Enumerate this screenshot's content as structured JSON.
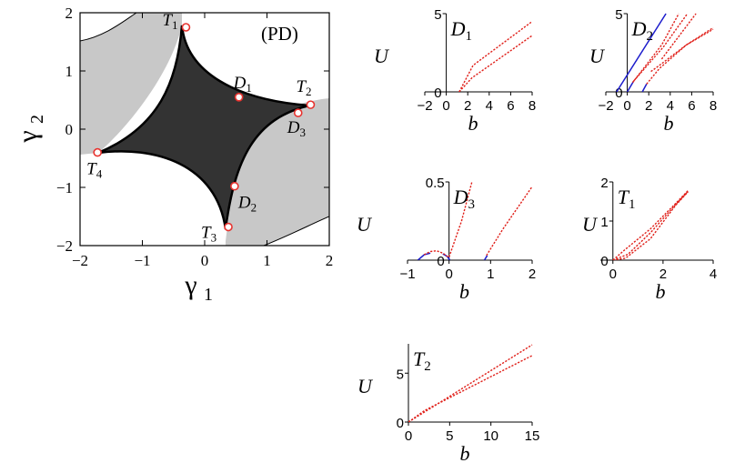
{
  "chart_data": [
    {
      "id": "PD",
      "type": "diagram",
      "panel_label": "(PD)",
      "xlabel": "γ₁",
      "ylabel": "γ₂",
      "xlim": [
        -2,
        2
      ],
      "ylim": [
        -2,
        2
      ],
      "xticks": [
        "−2",
        "−1",
        "0",
        "1",
        "2"
      ],
      "yticks": [
        "−2",
        "−1",
        "0",
        "1",
        "2"
      ],
      "colors": {
        "dark_region": "#333333",
        "grey_region": "#c8c8c8",
        "markers": "#e8322e"
      },
      "points": [
        {
          "label": "T1",
          "sub": "1",
          "x": -0.3,
          "y": 1.75
        },
        {
          "label": "T2",
          "sub": "2",
          "x": 1.7,
          "y": 0.42
        },
        {
          "label": "T3",
          "sub": "3",
          "x": 0.38,
          "y": -1.68
        },
        {
          "label": "T4",
          "sub": "4",
          "x": -1.72,
          "y": -0.4
        },
        {
          "label": "D1",
          "sub": "1",
          "x": 0.55,
          "y": 0.55
        },
        {
          "label": "D2",
          "sub": "2",
          "x": 0.48,
          "y": -0.98
        },
        {
          "label": "D3",
          "sub": "3",
          "x": 1.5,
          "y": 0.28
        }
      ]
    },
    {
      "id": "D1",
      "type": "line",
      "title_letter": "D",
      "title_sub": "1",
      "xlabel": "b",
      "ylabel": "U",
      "xlim": [
        -2,
        8
      ],
      "ylim": [
        0,
        5
      ],
      "xticks": [
        "−2",
        "0",
        "2",
        "4",
        "6",
        "8"
      ],
      "yticks": [
        "0",
        "5"
      ],
      "series": [
        {
          "style": "dotted",
          "color": "#e0201a",
          "x": [
            1.2,
            2.5,
            8
          ],
          "y": [
            0,
            1.7,
            4.5
          ]
        },
        {
          "style": "dotted",
          "color": "#e0201a",
          "x": [
            1.2,
            2.4,
            8
          ],
          "y": [
            0,
            0.9,
            3.6
          ]
        }
      ]
    },
    {
      "id": "D2",
      "type": "line",
      "title_letter": "D",
      "title_sub": "2",
      "xlabel": "b",
      "ylabel": "U",
      "xlim": [
        -2,
        8
      ],
      "ylim": [
        0,
        5
      ],
      "xticks": [
        "−2",
        "0",
        "2",
        "4",
        "6",
        "8"
      ],
      "yticks": [
        "0",
        "5"
      ],
      "series": [
        {
          "style": "solid",
          "color": "#1c1ccc",
          "x": [
            -1,
            3.6
          ],
          "y": [
            0,
            5
          ]
        },
        {
          "style": "solid",
          "color": "#1c1ccc",
          "x": [
            0,
            0.6
          ],
          "y": [
            0,
            0.7
          ]
        },
        {
          "style": "solid",
          "color": "#1c1ccc",
          "x": [
            1.4,
            1.8
          ],
          "y": [
            0,
            0.5
          ]
        },
        {
          "style": "dotted",
          "color": "#e0201a",
          "x": [
            0.5,
            3.2,
            4.8
          ],
          "y": [
            0.6,
            3.0,
            5
          ]
        },
        {
          "style": "dotted",
          "color": "#e0201a",
          "x": [
            0.6,
            3.4,
            5.6
          ],
          "y": [
            0.7,
            2.9,
            5
          ]
        },
        {
          "style": "dotted",
          "color": "#e0201a",
          "x": [
            1.8,
            3.0,
            5.5,
            8
          ],
          "y": [
            0.5,
            1.5,
            3.0,
            4.0
          ]
        },
        {
          "style": "dotted",
          "color": "#e0201a",
          "x": [
            2.2,
            3.0,
            5.5,
            8
          ],
          "y": [
            1.3,
            1.7,
            3.0,
            4.1
          ]
        },
        {
          "style": "dotted",
          "color": "#e0201a",
          "x": [
            3.2,
            5.3,
            6.4
          ],
          "y": [
            2.1,
            4.0,
            5
          ]
        }
      ]
    },
    {
      "id": "D3",
      "type": "line",
      "title_letter": "D",
      "title_sub": "3",
      "xlabel": "b",
      "ylabel": "U",
      "xlim": [
        -1,
        2
      ],
      "ylim": [
        0,
        0.5
      ],
      "xticks": [
        "−1",
        "0",
        "1",
        "2"
      ],
      "yticks": [
        "0",
        "0.5"
      ],
      "series": [
        {
          "style": "solid",
          "color": "#1c1ccc",
          "x": [
            -0.75,
            -0.6,
            -0.45
          ],
          "y": [
            0,
            0.035,
            0.045
          ]
        },
        {
          "style": "solid",
          "color": "#1c1ccc",
          "x": [
            -0.15,
            -0.05,
            0.02
          ],
          "y": [
            0.04,
            0.025,
            0
          ]
        },
        {
          "style": "solid",
          "color": "#1c1ccc",
          "x": [
            0.85,
            0.92
          ],
          "y": [
            0,
            0.03
          ]
        },
        {
          "style": "dotted",
          "color": "#e0201a",
          "x": [
            -0.6,
            -0.45,
            -0.3,
            -0.15,
            -0.02
          ],
          "y": [
            0.035,
            0.055,
            0.06,
            0.045,
            0.02
          ]
        },
        {
          "style": "dotted",
          "color": "#e0201a",
          "x": [
            0.0,
            0.3,
            0.55
          ],
          "y": [
            0.02,
            0.25,
            0.5
          ]
        },
        {
          "style": "dotted",
          "color": "#e0201a",
          "x": [
            0.9,
            1.3,
            2.0
          ],
          "y": [
            0.03,
            0.2,
            0.47
          ]
        }
      ]
    },
    {
      "id": "T1",
      "type": "line",
      "title_letter": "T",
      "title_sub": "1",
      "xlabel": "b",
      "ylabel": "U",
      "xlim": [
        -0.5,
        4
      ],
      "ylim": [
        0,
        2
      ],
      "xticks": [
        "0",
        "2",
        "4"
      ],
      "yticks": [
        "0",
        "1",
        "2"
      ],
      "series": [
        {
          "style": "dotted",
          "color": "#e0201a",
          "x": [
            0,
            0.5,
            1.5,
            2.5,
            3.0
          ],
          "y": [
            0,
            0.05,
            0.55,
            1.4,
            1.75
          ]
        },
        {
          "style": "dotted",
          "color": "#e0201a",
          "x": [
            0,
            0.5,
            1.5,
            2.5,
            3.0
          ],
          "y": [
            0,
            0.28,
            0.8,
            1.45,
            1.78
          ]
        },
        {
          "style": "dotted",
          "color": "#e0201a",
          "x": [
            0,
            0.6,
            1.5,
            2.5,
            3.0
          ],
          "y": [
            0,
            0.15,
            0.7,
            1.42,
            1.76
          ]
        }
      ]
    },
    {
      "id": "T2",
      "type": "line",
      "title_letter": "T",
      "title_sub": "2",
      "xlabel": "b",
      "ylabel": "U",
      "xlim": [
        0,
        15
      ],
      "ylim": [
        0,
        8
      ],
      "xticks": [
        "0",
        "5",
        "10",
        "15"
      ],
      "yticks": [
        "0",
        "5"
      ],
      "series": [
        {
          "style": "dotted",
          "color": "#e0201a",
          "x": [
            0,
            15
          ],
          "y": [
            0,
            7.9
          ]
        },
        {
          "style": "dotted",
          "color": "#e0201a",
          "x": [
            0,
            2,
            15
          ],
          "y": [
            0,
            1.2,
            6.8
          ]
        }
      ]
    }
  ]
}
